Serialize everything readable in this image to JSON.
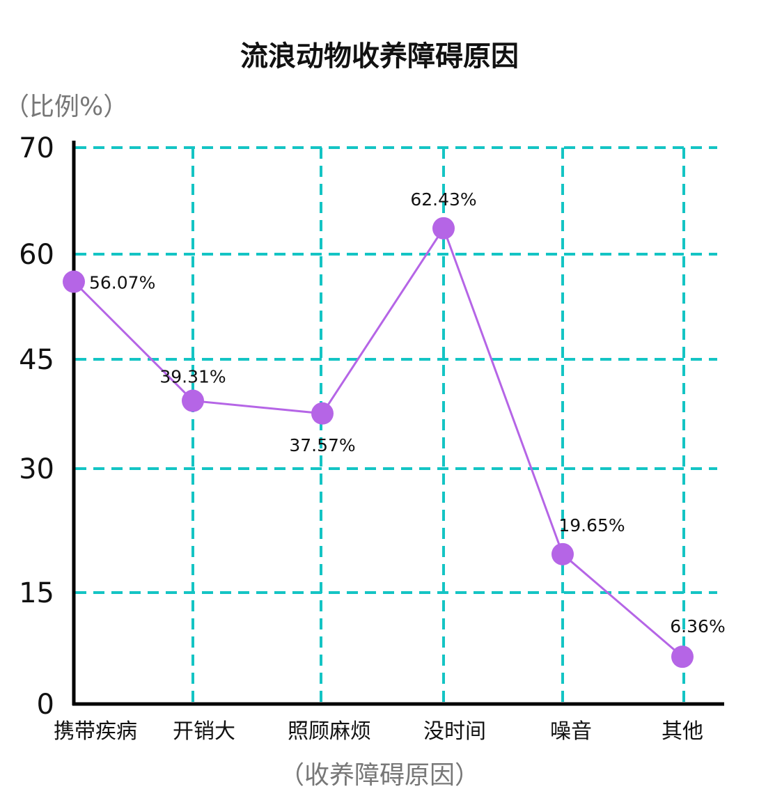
{
  "chart_data": {
    "type": "line",
    "title": "流浪动物收养障碍原因",
    "ylabel": "（比例%）",
    "xlabel": "（收养障碍原因）",
    "categories": [
      "携带疾病",
      "开销大",
      "照顾麻烦",
      "没时间",
      "噪音",
      "其他"
    ],
    "series": [
      {
        "name": "比例",
        "values": [
          56.07,
          39.31,
          37.57,
          62.43,
          19.65,
          6.36
        ],
        "labels": [
          "56.07%",
          "39.31%",
          "37.57%",
          "62.43%",
          "19.65%",
          "6.36%"
        ]
      }
    ],
    "y_ticks": [
      {
        "value": 0,
        "label": "0"
      },
      {
        "value": 15,
        "label": "15"
      },
      {
        "value": 30,
        "label": "30"
      },
      {
        "value": 45,
        "label": "45"
      },
      {
        "value": 60,
        "label": "60"
      },
      {
        "value": 70,
        "label": "70"
      }
    ],
    "grid": true,
    "colors": {
      "line": "#b565e6",
      "marker": "#b565e6",
      "grid": "#14c4c4",
      "axis": "#000000"
    }
  }
}
